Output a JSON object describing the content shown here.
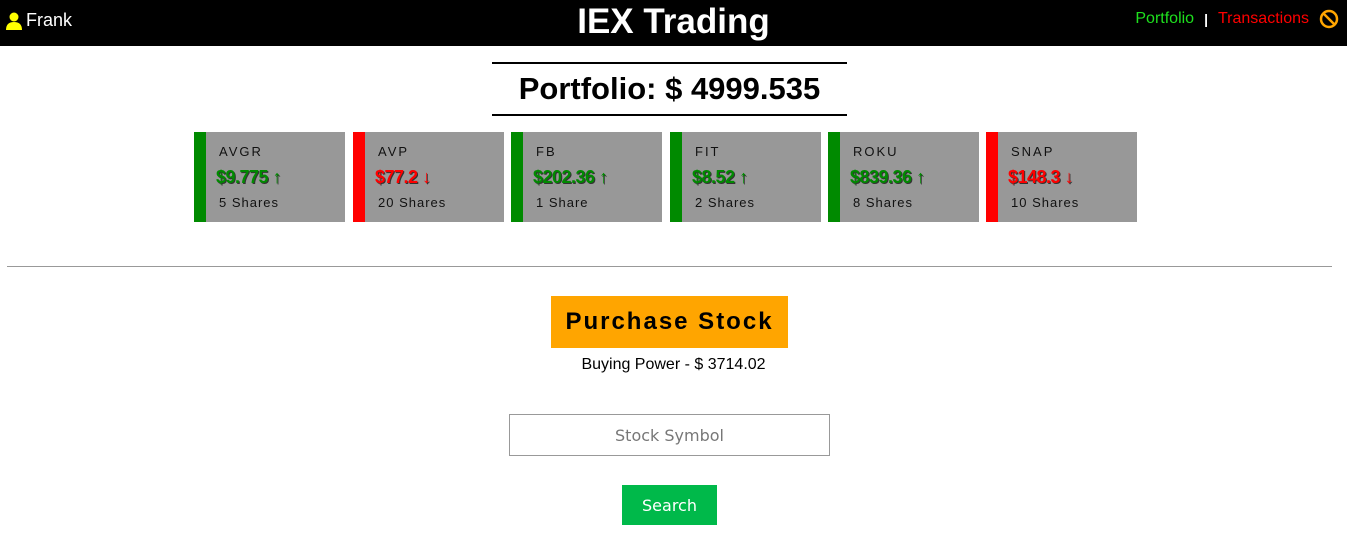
{
  "header": {
    "user": "Frank",
    "title": "IEX Trading",
    "nav": {
      "portfolio": "Portfolio",
      "separator": "|",
      "transactions": "Transactions"
    },
    "icons": [
      "user-icon",
      "logout-icon"
    ]
  },
  "portfolio": {
    "title": "Portfolio: $ 4999.535"
  },
  "colors": {
    "up": "#008a00",
    "down": "#ff0000",
    "accent": "#ffa500",
    "search": "#00b94a"
  },
  "stocks": [
    {
      "symbol": "AVGR",
      "price": "$9.775",
      "trend": "up",
      "shares": "5 Shares"
    },
    {
      "symbol": "AVP",
      "price": "$77.2",
      "trend": "down",
      "shares": "20 Shares"
    },
    {
      "symbol": "FB",
      "price": "$202.36",
      "trend": "up",
      "shares": "1 Share"
    },
    {
      "symbol": "FIT",
      "price": "$8.52",
      "trend": "up",
      "shares": "2 Shares"
    },
    {
      "symbol": "ROKU",
      "price": "$839.36",
      "trend": "up",
      "shares": "8 Shares"
    },
    {
      "symbol": "SNAP",
      "price": "$148.3",
      "trend": "down",
      "shares": "10 Shares"
    }
  ],
  "purchase": {
    "button": "Purchase Stock",
    "buying_power": "Buying Power - $ 3714.02",
    "input_placeholder": "Stock Symbol",
    "search": "Search"
  }
}
